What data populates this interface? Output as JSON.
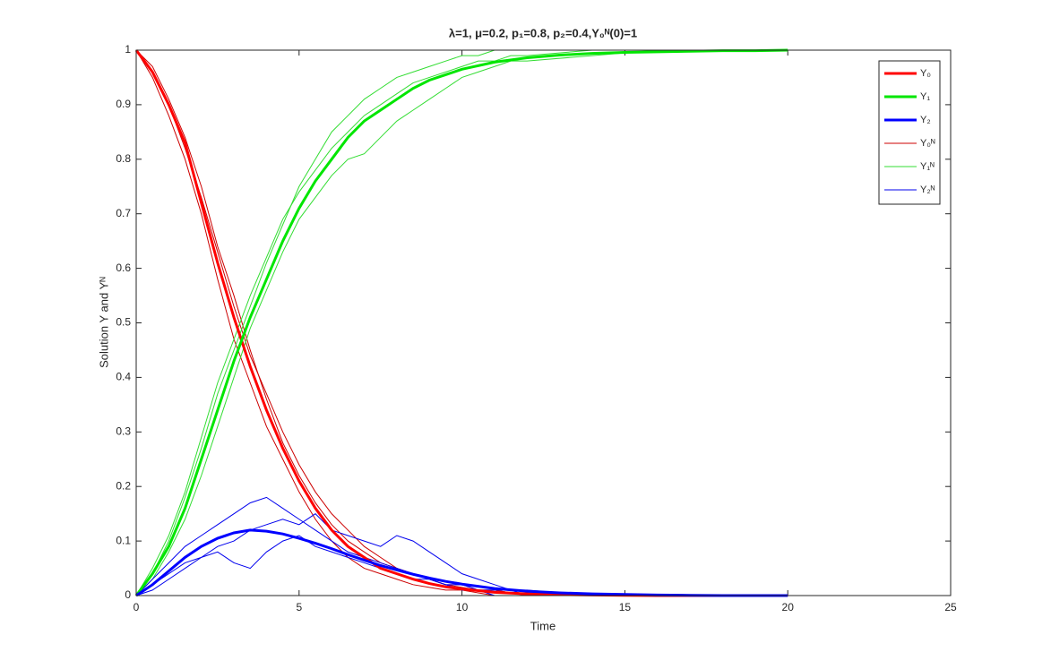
{
  "chart_data": {
    "type": "line",
    "title": "λ=1, μ=0.2, p₁=0.8, p₂=0.4,Y₀ᴺ(0)=1",
    "x_label": "Time",
    "y_label": "Solution Y and Yᴺ",
    "xlim": [
      0,
      25
    ],
    "xticks": [
      0,
      5,
      10,
      15,
      20,
      25
    ],
    "ylim": [
      0,
      1
    ],
    "yticks": [
      0,
      0.1,
      0.2,
      0.3,
      0.4,
      0.5,
      0.6,
      0.7,
      0.8,
      0.9,
      1
    ],
    "grid": false,
    "legend": "top-right",
    "x": [
      0,
      0.5,
      1,
      1.5,
      2,
      2.5,
      3,
      3.5,
      4,
      4.5,
      5,
      5.5,
      6,
      6.5,
      7,
      7.5,
      8,
      8.5,
      9,
      9.5,
      10,
      11,
      12,
      13,
      14,
      15,
      16,
      17,
      18,
      19,
      20
    ],
    "runs_x": [
      0,
      0.5,
      1,
      1.5,
      2,
      2.5,
      3,
      3.5,
      4,
      4.5,
      5,
      5.5,
      6,
      6.5,
      7,
      7.5,
      8,
      8.5,
      9,
      9.5,
      10,
      10.5,
      11,
      11.5,
      12,
      14,
      16,
      18,
      20
    ],
    "series": [
      {
        "name": "Y₀",
        "color": "#ff0000",
        "values": [
          1,
          0.96,
          0.9,
          0.83,
          0.72,
          0.61,
          0.51,
          0.42,
          0.34,
          0.27,
          0.21,
          0.16,
          0.12,
          0.09,
          0.07,
          0.05,
          0.04,
          0.03,
          0.022,
          0.016,
          0.012,
          0.006,
          0.003,
          0.002,
          0.001,
          0.0005,
          0,
          0,
          0,
          0,
          0
        ]
      },
      {
        "name": "Y₁",
        "color": "#00e600",
        "values": [
          0,
          0.04,
          0.09,
          0.16,
          0.25,
          0.34,
          0.43,
          0.51,
          0.58,
          0.65,
          0.71,
          0.76,
          0.8,
          0.84,
          0.87,
          0.89,
          0.91,
          0.93,
          0.945,
          0.955,
          0.965,
          0.978,
          0.986,
          0.991,
          0.994,
          0.996,
          0.997,
          0.998,
          0.999,
          0.999,
          1
        ]
      },
      {
        "name": "Y₂",
        "color": "#0000ff",
        "values": [
          0,
          0.02,
          0.045,
          0.07,
          0.09,
          0.105,
          0.115,
          0.12,
          0.118,
          0.113,
          0.105,
          0.096,
          0.086,
          0.075,
          0.065,
          0.055,
          0.047,
          0.039,
          0.032,
          0.026,
          0.021,
          0.013,
          0.008,
          0.005,
          0.003,
          0.002,
          0.001,
          0.0005,
          0,
          0,
          0
        ]
      },
      {
        "name": "Y₀ᴺ",
        "color": "#cc0000",
        "runs": [
          [
            1,
            0.97,
            0.91,
            0.84,
            0.75,
            0.64,
            0.55,
            0.45,
            0.36,
            0.28,
            0.22,
            0.17,
            0.13,
            0.1,
            0.08,
            0.06,
            0.05,
            0.04,
            0.03,
            0.02,
            0.015,
            0.01,
            0.01,
            0.005,
            0,
            0,
            0,
            0,
            0
          ],
          [
            1,
            0.95,
            0.88,
            0.8,
            0.7,
            0.58,
            0.47,
            0.39,
            0.31,
            0.25,
            0.19,
            0.14,
            0.1,
            0.07,
            0.05,
            0.04,
            0.03,
            0.02,
            0.015,
            0.01,
            0.01,
            0.005,
            0,
            0,
            0,
            0,
            0,
            0,
            0
          ],
          [
            1,
            0.96,
            0.9,
            0.82,
            0.73,
            0.63,
            0.53,
            0.44,
            0.37,
            0.3,
            0.24,
            0.19,
            0.15,
            0.12,
            0.09,
            0.07,
            0.05,
            0.04,
            0.03,
            0.02,
            0.02,
            0.01,
            0.01,
            0.005,
            0.005,
            0,
            0,
            0,
            0
          ]
        ]
      },
      {
        "name": "Y₁ᴺ",
        "color": "#33dd33",
        "runs": [
          [
            0,
            0.05,
            0.11,
            0.19,
            0.29,
            0.39,
            0.47,
            0.55,
            0.62,
            0.69,
            0.74,
            0.78,
            0.82,
            0.85,
            0.88,
            0.9,
            0.92,
            0.94,
            0.95,
            0.96,
            0.97,
            0.98,
            0.98,
            0.99,
            0.99,
            1,
            1,
            1,
            1
          ],
          [
            0,
            0.03,
            0.08,
            0.14,
            0.22,
            0.31,
            0.4,
            0.49,
            0.56,
            0.63,
            0.69,
            0.73,
            0.77,
            0.8,
            0.81,
            0.84,
            0.87,
            0.89,
            0.91,
            0.93,
            0.95,
            0.96,
            0.97,
            0.98,
            0.98,
            0.99,
            1,
            1,
            1
          ],
          [
            0,
            0.04,
            0.1,
            0.18,
            0.27,
            0.37,
            0.45,
            0.53,
            0.61,
            0.68,
            0.75,
            0.8,
            0.85,
            0.88,
            0.91,
            0.93,
            0.95,
            0.96,
            0.97,
            0.98,
            0.99,
            0.99,
            1,
            1,
            1,
            1,
            1,
            1,
            1
          ]
        ]
      },
      {
        "name": "Y₂ᴺ",
        "color": "#0000ee",
        "runs": [
          [
            0,
            0.03,
            0.06,
            0.09,
            0.11,
            0.13,
            0.15,
            0.17,
            0.18,
            0.16,
            0.14,
            0.12,
            0.1,
            0.08,
            0.07,
            0.06,
            0.05,
            0.04,
            0.03,
            0.02,
            0.02,
            0.01,
            0.01,
            0.01,
            0,
            0,
            0,
            0,
            0
          ],
          [
            0,
            0.01,
            0.03,
            0.05,
            0.07,
            0.09,
            0.1,
            0.12,
            0.13,
            0.14,
            0.13,
            0.15,
            0.12,
            0.11,
            0.1,
            0.09,
            0.11,
            0.1,
            0.08,
            0.06,
            0.04,
            0.03,
            0.02,
            0.01,
            0.01,
            0,
            0,
            0,
            0
          ],
          [
            0,
            0.02,
            0.04,
            0.06,
            0.07,
            0.08,
            0.06,
            0.05,
            0.08,
            0.1,
            0.11,
            0.09,
            0.08,
            0.07,
            0.06,
            0.05,
            0.04,
            0.03,
            0.03,
            0.02,
            0.01,
            0.01,
            0,
            0,
            0,
            0,
            0,
            0,
            0
          ]
        ]
      }
    ]
  }
}
